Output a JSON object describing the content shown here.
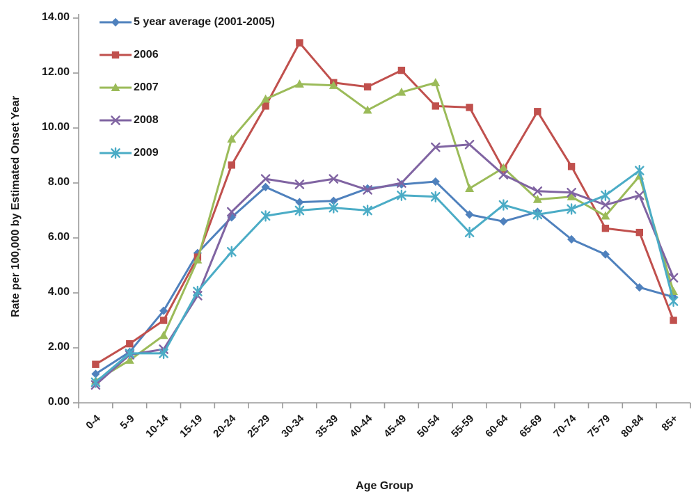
{
  "chart_data": {
    "type": "line",
    "title": "",
    "xlabel": "Age Group",
    "ylabel": "Rate per 100,000 by Estimated Onset Year",
    "ylim": [
      0,
      14
    ],
    "ytick_step": 2,
    "ytick_labels": [
      "0.00",
      "2.00",
      "4.00",
      "6.00",
      "8.00",
      "10.00",
      "12.00",
      "14.00"
    ],
    "grid": false,
    "legend_position": "top-left-inside",
    "axis_color": "#9a9a9a",
    "categories": [
      "0-4",
      "5-9",
      "10-14",
      "15-19",
      "20-24",
      "25-29",
      "30-34",
      "35-39",
      "40-44",
      "45-49",
      "50-54",
      "55-59",
      "60-64",
      "65-69",
      "70-74",
      "75-79",
      "80-84",
      "85+"
    ],
    "series": [
      {
        "name": "5 year average (2001-2005)",
        "color": "#4F81BD",
        "marker": "diamond",
        "values": [
          1.05,
          1.85,
          3.35,
          5.45,
          6.75,
          7.85,
          7.3,
          7.35,
          7.8,
          7.95,
          8.05,
          6.85,
          6.6,
          6.95,
          5.95,
          5.4,
          4.2,
          3.85
        ]
      },
      {
        "name": "2006",
        "color": "#C0504D",
        "marker": "square",
        "values": [
          1.4,
          2.15,
          3.0,
          5.3,
          8.65,
          10.8,
          13.1,
          11.65,
          11.5,
          12.1,
          10.8,
          10.75,
          8.5,
          10.6,
          8.6,
          6.35,
          6.2,
          3.0
        ]
      },
      {
        "name": "2007",
        "color": "#9BBB59",
        "marker": "triangle",
        "values": [
          0.8,
          1.55,
          2.45,
          5.2,
          9.6,
          11.05,
          11.6,
          11.55,
          10.65,
          11.3,
          11.65,
          7.8,
          8.55,
          7.4,
          7.5,
          6.8,
          8.25,
          4.05
        ]
      },
      {
        "name": "2008",
        "color": "#8064A2",
        "marker": "x",
        "values": [
          0.65,
          1.75,
          1.95,
          3.9,
          6.95,
          8.15,
          7.95,
          8.15,
          7.75,
          8.0,
          9.3,
          9.4,
          8.3,
          7.7,
          7.65,
          7.2,
          7.55,
          4.55
        ]
      },
      {
        "name": "2009",
        "color": "#4BACC6",
        "marker": "asterisk",
        "values": [
          0.75,
          1.8,
          1.8,
          4.05,
          5.5,
          6.8,
          7.0,
          7.1,
          7.0,
          7.55,
          7.5,
          6.2,
          7.2,
          6.85,
          7.05,
          7.55,
          8.45,
          3.7
        ]
      }
    ]
  }
}
